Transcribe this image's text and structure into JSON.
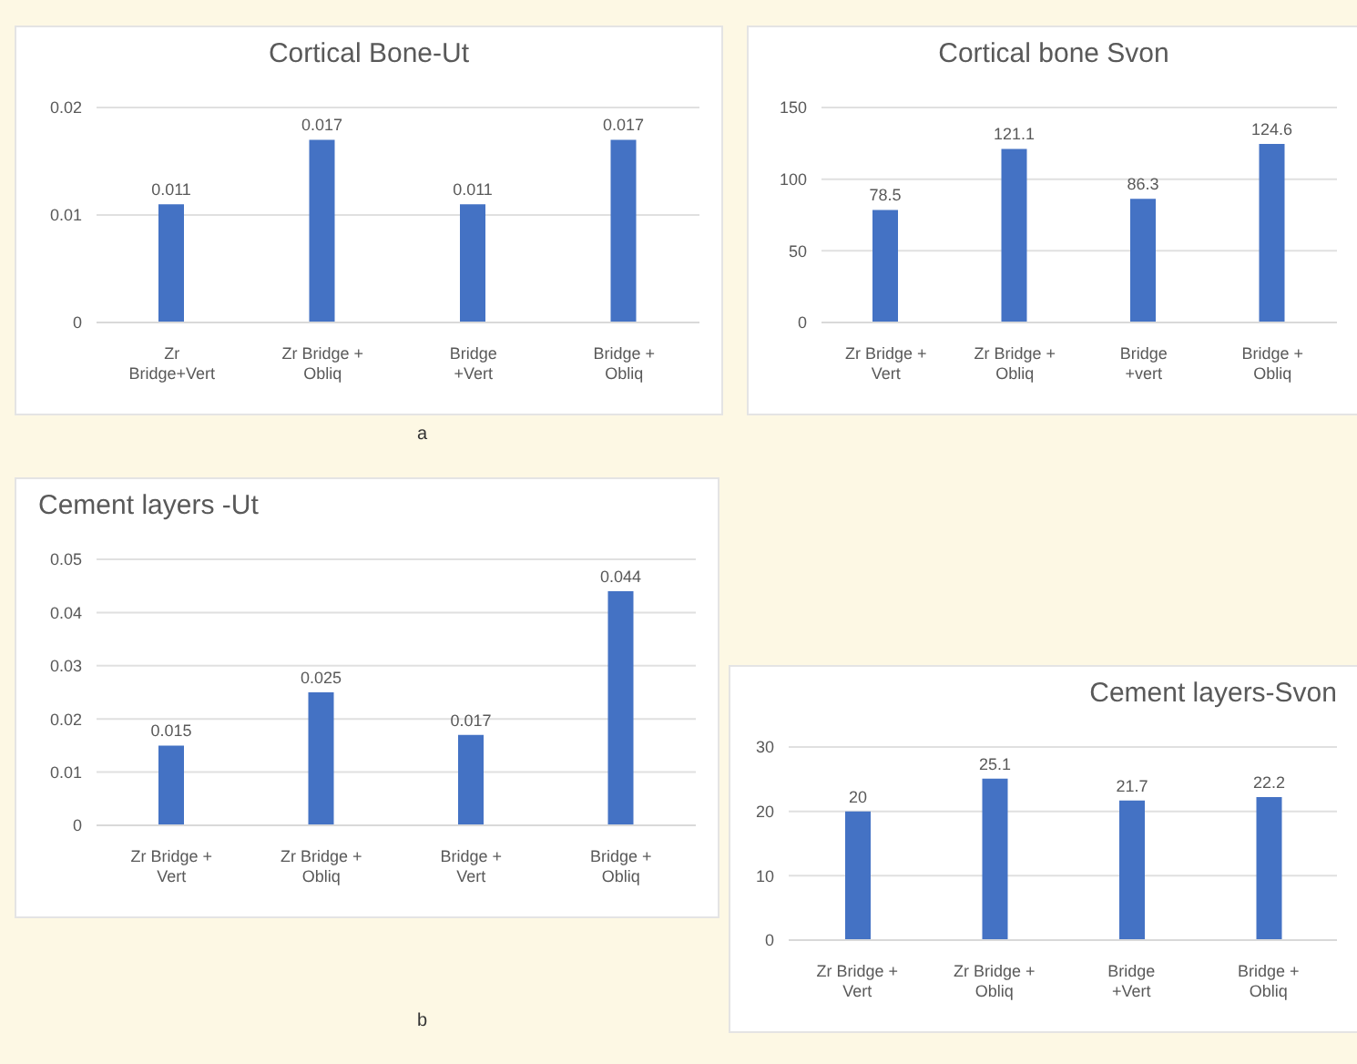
{
  "chart_data": [
    {
      "type": "bar",
      "title": "Cortical Bone-Ut",
      "categories": [
        "Zr Bridge+Vert",
        "Zr Bridge + Obliq",
        "Bridge +Vert",
        "Bridge + Obliq"
      ],
      "values": [
        0.011,
        0.017,
        0.011,
        0.017
      ],
      "color": "#4472c4",
      "ylim": [
        0,
        0.02
      ],
      "yticks": [
        0,
        0.01,
        0.02
      ],
      "grid": "y",
      "data_labels": true,
      "annotations": [
        "a"
      ]
    },
    {
      "type": "bar",
      "title": "Cortical bone Svon",
      "categories": [
        "Zr Bridge + Vert",
        "Zr Bridge + Obliq",
        "Bridge +vert",
        "Bridge + Obliq"
      ],
      "values": [
        78.5,
        121.1,
        86.3,
        124.6
      ],
      "color": "#4472c4",
      "ylim": [
        0,
        150
      ],
      "yticks": [
        0,
        50,
        100,
        150
      ],
      "grid": "y",
      "data_labels": true
    },
    {
      "type": "bar",
      "title": "Cement layers -Ut",
      "categories": [
        "Zr Bridge + Vert",
        "Zr Bridge + Obliq",
        "Bridge + Vert",
        "Bridge + Obliq"
      ],
      "values": [
        0.015,
        0.025,
        0.017,
        0.044
      ],
      "color": "#4472c4",
      "ylim": [
        0,
        0.05
      ],
      "yticks": [
        0,
        0.01,
        0.02,
        0.03,
        0.04,
        0.05
      ],
      "grid": "y",
      "data_labels": true,
      "annotations": [
        "b"
      ]
    },
    {
      "type": "bar",
      "title": "Cement layers-Svon",
      "categories": [
        "Zr Bridge + Vert",
        "Zr Bridge + Obliq",
        "Bridge +Vert",
        "Bridge + Obliq"
      ],
      "values": [
        20,
        25.1,
        21.7,
        22.2
      ],
      "color": "#4472c4",
      "ylim": [
        0,
        30
      ],
      "yticks": [
        0,
        10,
        20,
        30
      ],
      "grid": "y",
      "data_labels": true
    }
  ]
}
